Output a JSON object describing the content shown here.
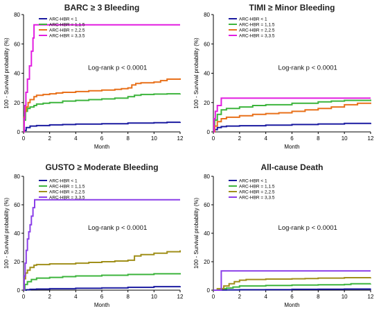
{
  "chart_data": [
    {
      "type": "line",
      "title": "BARC ≥ 3 Bleeding",
      "xlabel": "Month",
      "ylabel": "100 - Survival probability (%)",
      "xlim": [
        0,
        12
      ],
      "ylim": [
        0,
        80
      ],
      "xticks": [
        0,
        2,
        4,
        6,
        8,
        10,
        12
      ],
      "yticks": [
        0,
        20,
        40,
        60,
        80
      ],
      "annotation": "Log-rank p < 0.0001",
      "legend_position": "top-left",
      "series": [
        {
          "name": "ARC-HBR < 1",
          "color": "#1a1aa0",
          "x": [
            0,
            0.05,
            0.2,
            0.5,
            1,
            2,
            3,
            4,
            6,
            8,
            10,
            11,
            12
          ],
          "y": [
            0,
            1,
            3,
            4,
            4.3,
            4.8,
            5,
            5.3,
            5.6,
            6,
            6.3,
            6.6,
            6.8
          ]
        },
        {
          "name": "ARC-HBR = 1,1.5",
          "color": "#3cb43c",
          "x": [
            0,
            0.05,
            0.15,
            0.3,
            0.5,
            0.8,
            1,
            1.5,
            2,
            3,
            4,
            5,
            6,
            7,
            8,
            8.5,
            9,
            10,
            11,
            12
          ],
          "y": [
            0,
            8,
            14,
            16,
            17,
            18,
            19,
            19.5,
            20,
            21,
            21.5,
            22,
            22.5,
            23,
            24,
            25,
            25.5,
            25.8,
            26,
            26.2
          ]
        },
        {
          "name": "ARC-HBR = 2,2.5",
          "color": "#e8701a",
          "x": [
            0,
            0.05,
            0.1,
            0.2,
            0.35,
            0.5,
            0.8,
            1,
            1.5,
            2,
            2.5,
            3,
            4,
            5,
            6,
            7,
            7.5,
            8,
            8.3,
            8.6,
            9,
            10,
            10.5,
            11,
            12
          ],
          "y": [
            0,
            10,
            14,
            17,
            20,
            22,
            24,
            25,
            25.5,
            26,
            26.5,
            27,
            27.5,
            28,
            28.5,
            29,
            29.5,
            30,
            32,
            33,
            33.5,
            34,
            35,
            36,
            36.5
          ]
        },
        {
          "name": "ARC-HBR = 3,3.5",
          "color": "#e21ce0",
          "x": [
            0,
            0.05,
            0.1,
            0.18,
            0.3,
            0.45,
            0.6,
            0.72,
            0.8,
            12
          ],
          "y": [
            0,
            9,
            18,
            27,
            36,
            45,
            55,
            64,
            73,
            73
          ]
        }
      ]
    },
    {
      "type": "line",
      "title": "TIMI ≥ Minor Bleeding",
      "xlabel": "Month",
      "ylabel": "100 - Survival probability (%)",
      "xlim": [
        0,
        12
      ],
      "ylim": [
        0,
        80
      ],
      "xticks": [
        0,
        2,
        4,
        6,
        8,
        10,
        12
      ],
      "yticks": [
        0,
        20,
        40,
        60,
        80
      ],
      "annotation": "Log-rank p < 0.0001",
      "legend_position": "top-left",
      "series": [
        {
          "name": "ARC-HBR < 1",
          "color": "#1a1aa0",
          "x": [
            0,
            0.1,
            0.3,
            0.6,
            1,
            2,
            4,
            6,
            8,
            10,
            12
          ],
          "y": [
            0,
            1.5,
            3,
            3.6,
            4,
            4.2,
            4.6,
            5,
            5.4,
            5.8,
            6.2
          ]
        },
        {
          "name": "ARC-HBR = 1,1.5",
          "color": "#3cb43c",
          "x": [
            0,
            0.1,
            0.3,
            0.6,
            1,
            2,
            3,
            4,
            6,
            8,
            9,
            10,
            12
          ],
          "y": [
            0,
            8,
            12,
            15,
            16,
            17,
            18,
            18.5,
            19.5,
            20.5,
            21,
            21.5,
            22
          ]
        },
        {
          "name": "ARC-HBR = 2,2.5",
          "color": "#e8701a",
          "x": [
            0,
            0.1,
            0.3,
            0.6,
            1,
            2,
            3,
            4,
            5,
            6,
            7,
            8,
            9,
            10,
            11,
            12
          ],
          "y": [
            0,
            4,
            7,
            9,
            10,
            11,
            12,
            12.5,
            13,
            14,
            15,
            16,
            17,
            18.5,
            19.5,
            20
          ]
        },
        {
          "name": "ARC-HBR = 3,3.5",
          "color": "#e21ce0",
          "x": [
            0,
            0.05,
            0.15,
            0.3,
            0.6,
            12
          ],
          "y": [
            0,
            9,
            14,
            18,
            23,
            23
          ]
        }
      ]
    },
    {
      "type": "line",
      "title": "GUSTO ≥ Moderate Bleeding",
      "xlabel": "Month",
      "ylabel": "100 - Survival probability (%)",
      "xlim": [
        0,
        12
      ],
      "ylim": [
        0,
        80
      ],
      "xticks": [
        0,
        2,
        4,
        6,
        8,
        10,
        12
      ],
      "yticks": [
        0,
        20,
        40,
        60,
        80
      ],
      "annotation": "Log-rank p < 0.0001",
      "legend_position": "top-left",
      "series": [
        {
          "name": "ARC-HBR < 1",
          "color": "#1a1aa0",
          "x": [
            0,
            0.2,
            0.5,
            1,
            2,
            4,
            6,
            8,
            10,
            12
          ],
          "y": [
            0,
            0.3,
            0.6,
            0.8,
            1,
            1.3,
            1.6,
            2,
            2.5,
            2.8
          ]
        },
        {
          "name": "ARC-HBR = 1,1.5",
          "color": "#3cb43c",
          "x": [
            0,
            0.1,
            0.3,
            0.6,
            1,
            2,
            3,
            4,
            6,
            8,
            10,
            12
          ],
          "y": [
            0,
            4,
            6,
            7.5,
            8.5,
            9,
            9.5,
            10,
            10.5,
            11,
            11.5,
            12
          ]
        },
        {
          "name": "ARC-HBR = 2,2.5",
          "color": "#a08f1a",
          "x": [
            0,
            0.05,
            0.15,
            0.3,
            0.5,
            0.8,
            1,
            2,
            4,
            5,
            6,
            7,
            8,
            8.5,
            9,
            10,
            11,
            12
          ],
          "y": [
            0,
            8,
            12,
            14,
            16,
            17.5,
            18,
            18.5,
            19,
            19.5,
            20,
            20.5,
            21,
            24,
            25,
            26,
            27,
            28
          ]
        },
        {
          "name": "ARC-HBR = 3,3.5",
          "color": "#8a3ee8",
          "x": [
            0,
            0.05,
            0.12,
            0.2,
            0.3,
            0.4,
            0.5,
            0.6,
            0.72,
            0.85,
            12
          ],
          "y": [
            0,
            10,
            19,
            28,
            36,
            41,
            46,
            52,
            58,
            63.5,
            63.5
          ]
        }
      ]
    },
    {
      "type": "line",
      "title": "All-cause Death",
      "xlabel": "Month",
      "ylabel": "100 - Survival probability (%)",
      "xlim": [
        0,
        12
      ],
      "ylim": [
        0,
        80
      ],
      "xticks": [
        0,
        2,
        4,
        6,
        8,
        10,
        12
      ],
      "yticks": [
        0,
        20,
        40,
        60,
        80
      ],
      "annotation": "Log-rank p < 0.0001",
      "legend_position": "top-left",
      "series": [
        {
          "name": "ARC-HBR < 1",
          "color": "#1a1aa0",
          "x": [
            0,
            0.5,
            1,
            2,
            4,
            6,
            8,
            10,
            12
          ],
          "y": [
            0,
            0.1,
            0.2,
            0.3,
            0.4,
            0.6,
            0.7,
            0.8,
            1
          ]
        },
        {
          "name": "ARC-HBR = 1,1.5",
          "color": "#3cb43c",
          "x": [
            0,
            0.3,
            0.6,
            1,
            1.5,
            2,
            4,
            6,
            8,
            10,
            10.5,
            12
          ],
          "y": [
            0,
            0.5,
            1,
            1.5,
            2.2,
            3,
            3.3,
            3.6,
            3.8,
            4,
            4.5,
            4.6
          ]
        },
        {
          "name": "ARC-HBR = 2,2.5",
          "color": "#a08f1a",
          "x": [
            0,
            0.3,
            0.8,
            1.2,
            1.6,
            2,
            2.5,
            4,
            6,
            7,
            8,
            10,
            12
          ],
          "y": [
            0,
            1,
            3,
            4.5,
            6,
            7,
            7.5,
            7.8,
            8,
            8.2,
            8.5,
            8.8,
            9
          ]
        },
        {
          "name": "ARC-HBR = 3,3.5",
          "color": "#8a3ee8",
          "x": [
            0,
            0.6,
            12
          ],
          "y": [
            0,
            13.5,
            13.5
          ]
        }
      ]
    }
  ]
}
